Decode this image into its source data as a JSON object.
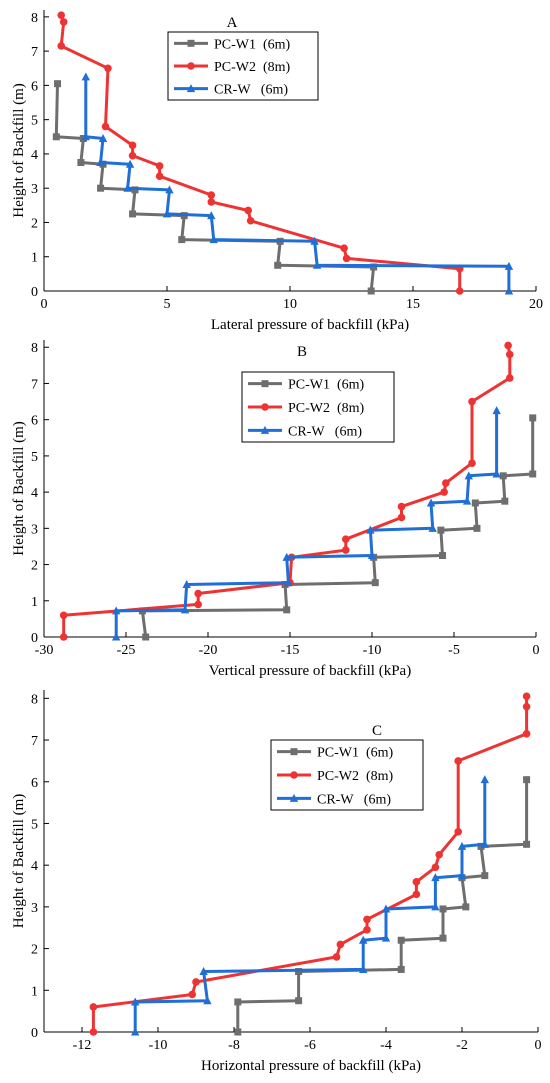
{
  "chart_data": [
    {
      "type": "line",
      "title": "A",
      "xlabel": "Lateral pressure of backfill (kPa)",
      "ylabel": "Height of Backfill (m)",
      "xlim": [
        0,
        20
      ],
      "ylim": [
        0,
        8.2
      ],
      "xticks": [
        0,
        5,
        10,
        15,
        20
      ],
      "yticks": [
        0,
        1,
        2,
        3,
        4,
        5,
        6,
        7,
        8
      ],
      "legend_position": "top-center",
      "series": [
        {
          "name": "PC-W1  (6m)",
          "color": "#6e6e6e",
          "marker": "square",
          "points": [
            [
              13.3,
              0.0
            ],
            [
              13.4,
              0.7
            ],
            [
              9.5,
              0.75
            ],
            [
              9.6,
              1.45
            ],
            [
              5.6,
              1.5
            ],
            [
              5.7,
              2.2
            ],
            [
              3.6,
              2.25
            ],
            [
              3.7,
              2.95
            ],
            [
              2.3,
              3.0
            ],
            [
              2.4,
              3.7
            ],
            [
              1.5,
              3.75
            ],
            [
              1.6,
              4.45
            ],
            [
              0.5,
              4.5
            ],
            [
              0.55,
              6.05
            ]
          ]
        },
        {
          "name": "PC-W2  (8m)",
          "color": "#ee3333",
          "marker": "circle",
          "points": [
            [
              16.9,
              0.0
            ],
            [
              16.9,
              0.65
            ],
            [
              12.3,
              0.95
            ],
            [
              12.2,
              1.25
            ],
            [
              8.4,
              2.05
            ],
            [
              8.3,
              2.35
            ],
            [
              6.8,
              2.6
            ],
            [
              6.8,
              2.8
            ],
            [
              4.7,
              3.35
            ],
            [
              4.7,
              3.65
            ],
            [
              3.6,
              3.95
            ],
            [
              3.6,
              4.25
            ],
            [
              2.5,
              4.8
            ],
            [
              2.6,
              6.5
            ],
            [
              0.7,
              7.15
            ],
            [
              0.8,
              7.85
            ],
            [
              0.7,
              8.05
            ]
          ]
        },
        {
          "name": "CR-W   (6m)",
          "color": "#1f6fd6",
          "marker": "triangle",
          "points": [
            [
              18.9,
              0.0
            ],
            [
              18.9,
              0.72
            ],
            [
              11.1,
              0.75
            ],
            [
              11.0,
              1.45
            ],
            [
              6.9,
              1.5
            ],
            [
              6.8,
              2.2
            ],
            [
              5.0,
              2.25
            ],
            [
              5.1,
              2.95
            ],
            [
              3.4,
              3.0
            ],
            [
              3.5,
              3.7
            ],
            [
              2.3,
              3.75
            ],
            [
              2.4,
              4.45
            ],
            [
              1.7,
              4.5
            ],
            [
              1.7,
              6.25
            ]
          ]
        }
      ]
    },
    {
      "type": "line",
      "title": "B",
      "xlabel": "Vertical pressure of backfill (kPa)",
      "ylabel": "Height of Backfill (m)",
      "xlim": [
        -30,
        0
      ],
      "ylim": [
        0,
        8.2
      ],
      "xticks": [
        -30,
        -25,
        -20,
        -15,
        -10,
        -5,
        0
      ],
      "yticks": [
        0,
        1,
        2,
        3,
        4,
        5,
        6,
        7,
        8
      ],
      "legend_position": "top-center",
      "series": [
        {
          "name": "PC-W1  (6m)",
          "color": "#6e6e6e",
          "marker": "square",
          "points": [
            [
              -23.8,
              0.0
            ],
            [
              -24.0,
              0.72
            ],
            [
              -15.2,
              0.75
            ],
            [
              -15.3,
              1.45
            ],
            [
              -9.8,
              1.5
            ],
            [
              -9.9,
              2.2
            ],
            [
              -5.7,
              2.25
            ],
            [
              -5.8,
              2.95
            ],
            [
              -3.6,
              3.0
            ],
            [
              -3.7,
              3.7
            ],
            [
              -1.9,
              3.75
            ],
            [
              -2.0,
              4.45
            ],
            [
              -0.2,
              4.5
            ],
            [
              -0.2,
              6.05
            ]
          ]
        },
        {
          "name": "PC-W2  (8m)",
          "color": "#ee3333",
          "marker": "circle",
          "points": [
            [
              -28.8,
              0.0
            ],
            [
              -28.8,
              0.6
            ],
            [
              -20.6,
              0.9
            ],
            [
              -20.6,
              1.2
            ],
            [
              -15.0,
              1.5
            ],
            [
              -14.9,
              2.2
            ],
            [
              -11.6,
              2.4
            ],
            [
              -11.6,
              2.7
            ],
            [
              -8.2,
              3.3
            ],
            [
              -8.2,
              3.6
            ],
            [
              -5.6,
              4.0
            ],
            [
              -5.5,
              4.25
            ],
            [
              -3.9,
              4.8
            ],
            [
              -3.9,
              6.5
            ],
            [
              -1.6,
              7.15
            ],
            [
              -1.6,
              7.8
            ],
            [
              -1.7,
              8.05
            ]
          ]
        },
        {
          "name": "CR-W   (6m)",
          "color": "#1f6fd6",
          "marker": "triangle",
          "points": [
            [
              -25.6,
              0.0
            ],
            [
              -25.6,
              0.72
            ],
            [
              -21.4,
              0.75
            ],
            [
              -21.3,
              1.45
            ],
            [
              -15.1,
              1.5
            ],
            [
              -15.2,
              2.2
            ],
            [
              -10.0,
              2.25
            ],
            [
              -10.1,
              2.95
            ],
            [
              -6.3,
              3.0
            ],
            [
              -6.4,
              3.7
            ],
            [
              -4.2,
              3.75
            ],
            [
              -4.1,
              4.45
            ],
            [
              -2.4,
              4.5
            ],
            [
              -2.4,
              6.25
            ]
          ]
        }
      ]
    },
    {
      "type": "line",
      "title": "C",
      "xlabel": "Horizontal pressure of backfill (kPa)",
      "ylabel": "Height of Backfill (m)",
      "xlim": [
        -13,
        0
      ],
      "ylim": [
        0,
        8.2
      ],
      "xticks": [
        -12,
        -10,
        -8,
        -6,
        -4,
        -2,
        0
      ],
      "yticks": [
        0,
        1,
        2,
        3,
        4,
        5,
        6,
        7,
        8
      ],
      "legend_position": "top-center",
      "series": [
        {
          "name": "PC-W1  (6m)",
          "color": "#6e6e6e",
          "marker": "square",
          "points": [
            [
              -7.9,
              0.0
            ],
            [
              -7.9,
              0.72
            ],
            [
              -6.3,
              0.75
            ],
            [
              -6.3,
              1.45
            ],
            [
              -3.6,
              1.5
            ],
            [
              -3.6,
              2.2
            ],
            [
              -2.5,
              2.25
            ],
            [
              -2.5,
              2.95
            ],
            [
              -1.9,
              3.0
            ],
            [
              -2.0,
              3.7
            ],
            [
              -1.4,
              3.75
            ],
            [
              -1.5,
              4.45
            ],
            [
              -0.3,
              4.5
            ],
            [
              -0.3,
              6.05
            ]
          ]
        },
        {
          "name": "PC-W2  (8m)",
          "color": "#ee3333",
          "marker": "circle",
          "points": [
            [
              -11.7,
              0.0
            ],
            [
              -11.7,
              0.6
            ],
            [
              -9.1,
              0.9
            ],
            [
              -9.0,
              1.2
            ],
            [
              -5.3,
              1.8
            ],
            [
              -5.2,
              2.1
            ],
            [
              -4.5,
              2.45
            ],
            [
              -4.5,
              2.7
            ],
            [
              -3.2,
              3.3
            ],
            [
              -3.2,
              3.6
            ],
            [
              -2.7,
              3.95
            ],
            [
              -2.6,
              4.25
            ],
            [
              -2.1,
              4.8
            ],
            [
              -2.1,
              6.5
            ],
            [
              -0.3,
              7.15
            ],
            [
              -0.3,
              7.8
            ],
            [
              -0.3,
              8.05
            ]
          ]
        },
        {
          "name": "CR-W   (6m)",
          "color": "#1f6fd6",
          "marker": "triangle",
          "points": [
            [
              -10.6,
              0.0
            ],
            [
              -10.6,
              0.72
            ],
            [
              -8.7,
              0.75
            ],
            [
              -8.8,
              1.45
            ],
            [
              -4.6,
              1.5
            ],
            [
              -4.6,
              2.2
            ],
            [
              -4.0,
              2.25
            ],
            [
              -4.0,
              2.95
            ],
            [
              -2.7,
              3.0
            ],
            [
              -2.7,
              3.7
            ],
            [
              -2.0,
              3.75
            ],
            [
              -2.0,
              4.45
            ],
            [
              -1.4,
              4.5
            ],
            [
              -1.4,
              6.05
            ]
          ]
        }
      ]
    }
  ]
}
